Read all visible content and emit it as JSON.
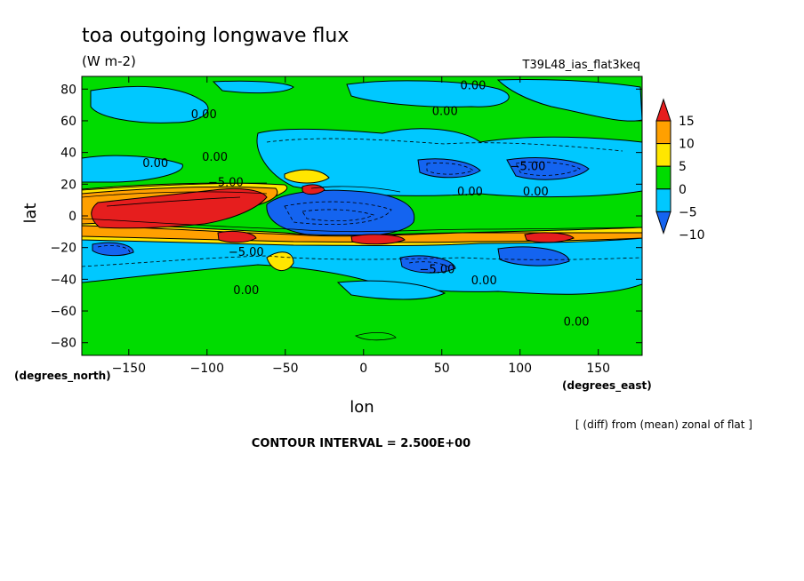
{
  "chart_data": {
    "type": "heatmap",
    "title": "toa outgoing longwave flux",
    "units": "(W m-2)",
    "run_label": "T39L48_ias_flat3keq",
    "xlabel": "lon",
    "ylabel": "lat",
    "x_unit_label": "(degrees_east)",
    "y_unit_label": "(degrees_north)",
    "xlim": [
      -180,
      178
    ],
    "ylim": [
      -88,
      88
    ],
    "x_ticks": [
      -150,
      -100,
      -50,
      0,
      50,
      100,
      150
    ],
    "y_ticks": [
      80,
      60,
      40,
      20,
      0,
      -20,
      -40,
      -60,
      -80
    ],
    "note": "[ (diff) from (mean) zonal of flat ]",
    "contour_interval_text": "CONTOUR INTERVAL = 2.500E+00",
    "colorbar": {
      "levels": [
        -10,
        -5,
        0,
        5,
        10,
        15
      ],
      "labels": [
        "15",
        "10",
        "5",
        "0",
        "-5",
        "-10"
      ],
      "colors": [
        "#1464f0",
        "#00c8ff",
        "#00dc00",
        "#ffe600",
        "#ffa000",
        "#e61e1e"
      ],
      "extend": "both"
    },
    "contour_labels": [
      {
        "text": "0.00",
        "lon": 70,
        "lat": 82
      },
      {
        "text": "0.00",
        "lon": -102,
        "lat": 64
      },
      {
        "text": "0.00",
        "lon": 52,
        "lat": 66
      },
      {
        "text": "0.00",
        "lon": -133,
        "lat": 33
      },
      {
        "text": "0.00",
        "lon": -95,
        "lat": 37
      },
      {
        "text": "-5.00",
        "lon": -88,
        "lat": 21
      },
      {
        "text": "-5.00",
        "lon": 105,
        "lat": 31
      },
      {
        "text": "0.00",
        "lon": 68,
        "lat": 15
      },
      {
        "text": "0.00",
        "lon": 110,
        "lat": 15
      },
      {
        "text": "-5.00",
        "lon": -75,
        "lat": -23
      },
      {
        "text": "-5.00",
        "lon": 47,
        "lat": -34
      },
      {
        "text": "0.00",
        "lon": -75,
        "lat": -47
      },
      {
        "text": "0.00",
        "lon": 77,
        "lat": -41
      },
      {
        "text": "0.00",
        "lon": 136,
        "lat": -67
      }
    ],
    "anomaly_features": [
      {
        "name": "western tropical positive band",
        "lon": -130,
        "lat": 5,
        "value": 15
      },
      {
        "name": "eastern tropical negative core",
        "lon": 0,
        "lat": 0,
        "value": -12
      },
      {
        "name": "northern subtropical negative cell",
        "lon": 100,
        "lat": 27,
        "value": -6
      },
      {
        "name": "southern subtropical negative cell",
        "lon": 100,
        "lat": -25,
        "value": -6
      },
      {
        "name": "southern tropical positive band",
        "lon": 0,
        "lat": -15,
        "value": 10
      }
    ]
  }
}
